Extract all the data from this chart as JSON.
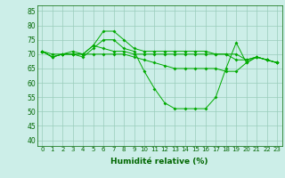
{
  "xlabel": "Humidité relative (%)",
  "ylim": [
    38,
    87
  ],
  "xlim": [
    -0.5,
    23.5
  ],
  "yticks": [
    40,
    45,
    50,
    55,
    60,
    65,
    70,
    75,
    80,
    85
  ],
  "xticks": [
    0,
    1,
    2,
    3,
    4,
    5,
    6,
    7,
    8,
    9,
    10,
    11,
    12,
    13,
    14,
    15,
    16,
    17,
    18,
    19,
    20,
    21,
    22,
    23
  ],
  "bg_color": "#cceee8",
  "grid_color": "#99ccbb",
  "line_color": "#00aa00",
  "series": [
    [
      71,
      69,
      70,
      70,
      69,
      72,
      75,
      75,
      72,
      71,
      64,
      58,
      53,
      51,
      51,
      51,
      51,
      55,
      65,
      74,
      67,
      69,
      68,
      67
    ],
    [
      71,
      69,
      70,
      71,
      70,
      73,
      72,
      71,
      71,
      70,
      70,
      70,
      70,
      70,
      70,
      70,
      70,
      70,
      70,
      70,
      68,
      69,
      68,
      67
    ],
    [
      71,
      69,
      70,
      70,
      70,
      73,
      78,
      78,
      75,
      72,
      71,
      71,
      71,
      71,
      71,
      71,
      71,
      70,
      70,
      68,
      68,
      69,
      68,
      67
    ],
    [
      71,
      70,
      70,
      70,
      70,
      70,
      70,
      70,
      70,
      69,
      68,
      67,
      66,
      65,
      65,
      65,
      65,
      65,
      64,
      64,
      67,
      69,
      68,
      67
    ]
  ]
}
